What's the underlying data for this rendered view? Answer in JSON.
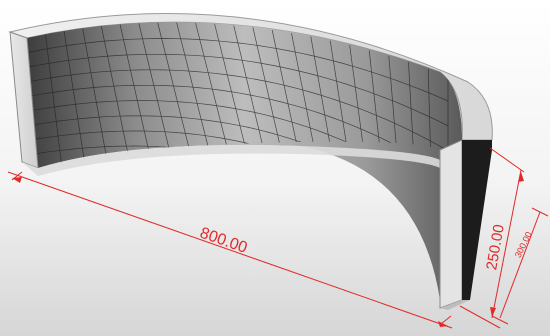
{
  "drawing": {
    "subject": "curved-wall-segment",
    "dimensions": {
      "length_label": "800.00",
      "height_label": "250.00",
      "depth_label": "300.00"
    },
    "colors": {
      "background_top": "#fdfdfd",
      "background_bottom": "#d9d9d9",
      "dimension_line": "#e02a2a",
      "wall_edge": "#e6e6e6",
      "wall_inner_dark": "#4a4a4a",
      "wall_inner_light": "#b8b8b8",
      "grid_line": "#2a2a2a"
    }
  }
}
